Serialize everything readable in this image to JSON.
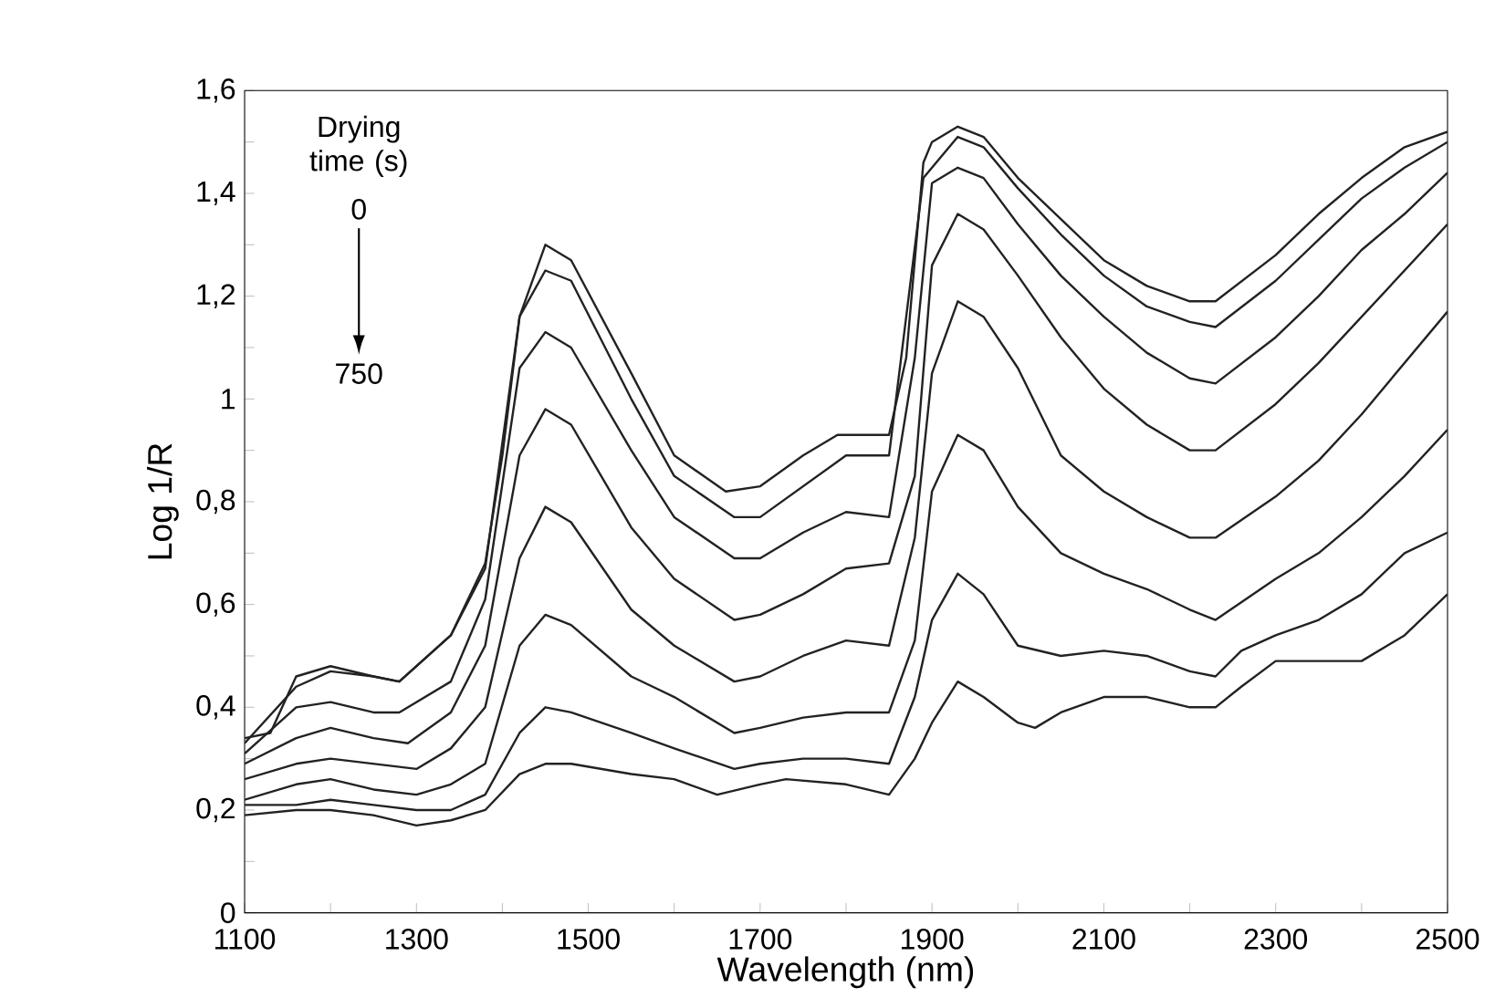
{
  "chart_data": {
    "type": "line",
    "xlabel": "Wavelength (nm)",
    "ylabel": "Log 1/R",
    "annotations": [
      "Drying time (s)",
      "0",
      "750"
    ],
    "xlim": [
      1100,
      2500
    ],
    "xticks": [
      1100,
      {
        "value": 1200,
        "label": null
      },
      1300,
      {
        "value": 1400,
        "label": null
      },
      1500,
      {
        "value": 1600,
        "label": null
      },
      1700,
      {
        "value": 1800,
        "label": null
      },
      1900,
      {
        "value": 2000,
        "label": null
      },
      2100,
      {
        "value": 2200,
        "label": null
      },
      2300,
      {
        "value": 2400,
        "label": null
      },
      2500
    ],
    "ylim": [
      0,
      1.6
    ],
    "yticks": [
      0,
      {
        "value": 0.1,
        "label": null
      },
      {
        "value": 0.2,
        "label": "0,2"
      },
      {
        "value": 0.3,
        "label": null
      },
      {
        "value": 0.4,
        "label": "0,4"
      },
      {
        "value": 0.5,
        "label": null
      },
      {
        "value": 0.6,
        "label": "0,6"
      },
      {
        "value": 0.7,
        "label": null
      },
      {
        "value": 0.8,
        "label": "0,8"
      },
      {
        "value": 0.9,
        "label": null
      },
      1,
      {
        "value": 1.1,
        "label": null
      },
      {
        "value": 1.2,
        "label": "1,2"
      },
      {
        "value": 1.3,
        "label": null
      },
      {
        "value": 1.4,
        "label": "1,4"
      },
      {
        "value": 1.5,
        "label": null
      },
      {
        "value": 1.6,
        "label": "1,6"
      }
    ],
    "marker": "none",
    "line_style": "solid",
    "series": [
      {
        "color": "#222222",
        "x": [
          1100,
          1130,
          1160,
          1200,
          1250,
          1280,
          1340,
          1380,
          1400,
          1420,
          1450,
          1480,
          1550,
          1600,
          1660,
          1700,
          1750,
          1790,
          1850,
          1870,
          1890,
          1900,
          1930,
          1960,
          2000,
          2050,
          2100,
          2150,
          2200,
          2230,
          2300,
          2350,
          2400,
          2450,
          2500
        ],
        "values": [
          0.34,
          0.35,
          0.46,
          0.48,
          0.46,
          0.45,
          0.54,
          0.68,
          0.89,
          1.16,
          1.3,
          1.27,
          1.05,
          0.89,
          0.82,
          0.83,
          0.89,
          0.93,
          0.93,
          1.08,
          1.46,
          1.5,
          1.53,
          1.51,
          1.43,
          1.35,
          1.27,
          1.22,
          1.19,
          1.19,
          1.28,
          1.36,
          1.43,
          1.49,
          1.52
        ]
      },
      {
        "color": "#222222",
        "x": [
          1100,
          1160,
          1200,
          1250,
          1280,
          1340,
          1380,
          1420,
          1450,
          1480,
          1550,
          1600,
          1670,
          1700,
          1750,
          1800,
          1850,
          1890,
          1930,
          1960,
          2000,
          2050,
          2100,
          2150,
          2200,
          2230,
          2300,
          2350,
          2400,
          2450,
          2500
        ],
        "values": [
          0.33,
          0.44,
          0.47,
          0.46,
          0.45,
          0.54,
          0.67,
          1.16,
          1.25,
          1.23,
          1.0,
          0.85,
          0.77,
          0.77,
          0.83,
          0.89,
          0.89,
          1.43,
          1.51,
          1.49,
          1.41,
          1.32,
          1.24,
          1.18,
          1.15,
          1.14,
          1.23,
          1.31,
          1.39,
          1.45,
          1.5
        ]
      },
      {
        "color": "#222222",
        "x": [
          1100,
          1160,
          1200,
          1250,
          1280,
          1340,
          1380,
          1420,
          1450,
          1480,
          1550,
          1600,
          1670,
          1700,
          1750,
          1800,
          1850,
          1880,
          1900,
          1930,
          1960,
          2000,
          2050,
          2100,
          2150,
          2200,
          2230,
          2300,
          2350,
          2400,
          2450,
          2500
        ],
        "values": [
          0.31,
          0.4,
          0.41,
          0.39,
          0.39,
          0.45,
          0.61,
          1.06,
          1.13,
          1.1,
          0.9,
          0.77,
          0.69,
          0.69,
          0.74,
          0.78,
          0.77,
          1.08,
          1.42,
          1.45,
          1.43,
          1.34,
          1.24,
          1.16,
          1.09,
          1.04,
          1.03,
          1.12,
          1.2,
          1.29,
          1.36,
          1.44
        ]
      },
      {
        "color": "#222222",
        "x": [
          1100,
          1160,
          1200,
          1250,
          1290,
          1340,
          1380,
          1420,
          1450,
          1480,
          1550,
          1600,
          1670,
          1700,
          1750,
          1800,
          1850,
          1880,
          1900,
          1930,
          1960,
          2000,
          2050,
          2100,
          2150,
          2200,
          2230,
          2300,
          2350,
          2400,
          2450,
          2500
        ],
        "values": [
          0.29,
          0.34,
          0.36,
          0.34,
          0.33,
          0.39,
          0.52,
          0.89,
          0.98,
          0.95,
          0.75,
          0.65,
          0.57,
          0.58,
          0.62,
          0.67,
          0.68,
          0.85,
          1.26,
          1.36,
          1.33,
          1.24,
          1.12,
          1.02,
          0.95,
          0.9,
          0.9,
          0.99,
          1.07,
          1.16,
          1.25,
          1.34
        ]
      },
      {
        "color": "#222222",
        "x": [
          1100,
          1160,
          1200,
          1250,
          1300,
          1340,
          1380,
          1420,
          1450,
          1480,
          1550,
          1600,
          1670,
          1700,
          1750,
          1800,
          1850,
          1880,
          1900,
          1930,
          1960,
          2000,
          2050,
          2100,
          2150,
          2200,
          2230,
          2300,
          2350,
          2400,
          2450,
          2500
        ],
        "values": [
          0.26,
          0.29,
          0.3,
          0.29,
          0.28,
          0.32,
          0.4,
          0.69,
          0.79,
          0.76,
          0.59,
          0.52,
          0.45,
          0.46,
          0.5,
          0.53,
          0.52,
          0.73,
          1.05,
          1.19,
          1.16,
          1.06,
          0.89,
          0.82,
          0.77,
          0.73,
          0.73,
          0.81,
          0.88,
          0.97,
          1.07,
          1.17
        ]
      },
      {
        "color": "#222222",
        "x": [
          1100,
          1160,
          1200,
          1250,
          1300,
          1340,
          1380,
          1420,
          1450,
          1480,
          1550,
          1600,
          1670,
          1700,
          1750,
          1800,
          1850,
          1880,
          1900,
          1930,
          1960,
          2000,
          2050,
          2100,
          2150,
          2200,
          2230,
          2300,
          2350,
          2400,
          2450,
          2500
        ],
        "values": [
          0.22,
          0.25,
          0.26,
          0.24,
          0.23,
          0.25,
          0.29,
          0.52,
          0.58,
          0.56,
          0.46,
          0.42,
          0.35,
          0.36,
          0.38,
          0.39,
          0.39,
          0.53,
          0.82,
          0.93,
          0.9,
          0.79,
          0.7,
          0.66,
          0.63,
          0.59,
          0.57,
          0.65,
          0.7,
          0.77,
          0.85,
          0.94
        ]
      },
      {
        "color": "#222222",
        "x": [
          1100,
          1160,
          1200,
          1250,
          1300,
          1340,
          1380,
          1420,
          1450,
          1480,
          1550,
          1600,
          1670,
          1700,
          1750,
          1800,
          1850,
          1880,
          1900,
          1930,
          1960,
          2000,
          2050,
          2100,
          2150,
          2200,
          2230,
          2260,
          2300,
          2350,
          2400,
          2450,
          2500
        ],
        "values": [
          0.21,
          0.21,
          0.22,
          0.21,
          0.2,
          0.2,
          0.23,
          0.35,
          0.4,
          0.39,
          0.35,
          0.32,
          0.28,
          0.29,
          0.3,
          0.3,
          0.29,
          0.42,
          0.57,
          0.66,
          0.62,
          0.52,
          0.5,
          0.51,
          0.5,
          0.47,
          0.46,
          0.51,
          0.54,
          0.57,
          0.62,
          0.7,
          0.74
        ]
      },
      {
        "color": "#222222",
        "x": [
          1100,
          1160,
          1200,
          1250,
          1300,
          1340,
          1380,
          1420,
          1450,
          1480,
          1550,
          1600,
          1650,
          1700,
          1730,
          1800,
          1850,
          1880,
          1900,
          1930,
          1960,
          2000,
          2020,
          2050,
          2100,
          2150,
          2200,
          2230,
          2260,
          2300,
          2350,
          2400,
          2450,
          2500
        ],
        "values": [
          0.19,
          0.2,
          0.2,
          0.19,
          0.17,
          0.18,
          0.2,
          0.27,
          0.29,
          0.29,
          0.27,
          0.26,
          0.23,
          0.25,
          0.26,
          0.25,
          0.23,
          0.3,
          0.37,
          0.45,
          0.42,
          0.37,
          0.36,
          0.39,
          0.42,
          0.42,
          0.4,
          0.4,
          0.44,
          0.49,
          0.49,
          0.49,
          0.54,
          0.62
        ]
      }
    ]
  }
}
